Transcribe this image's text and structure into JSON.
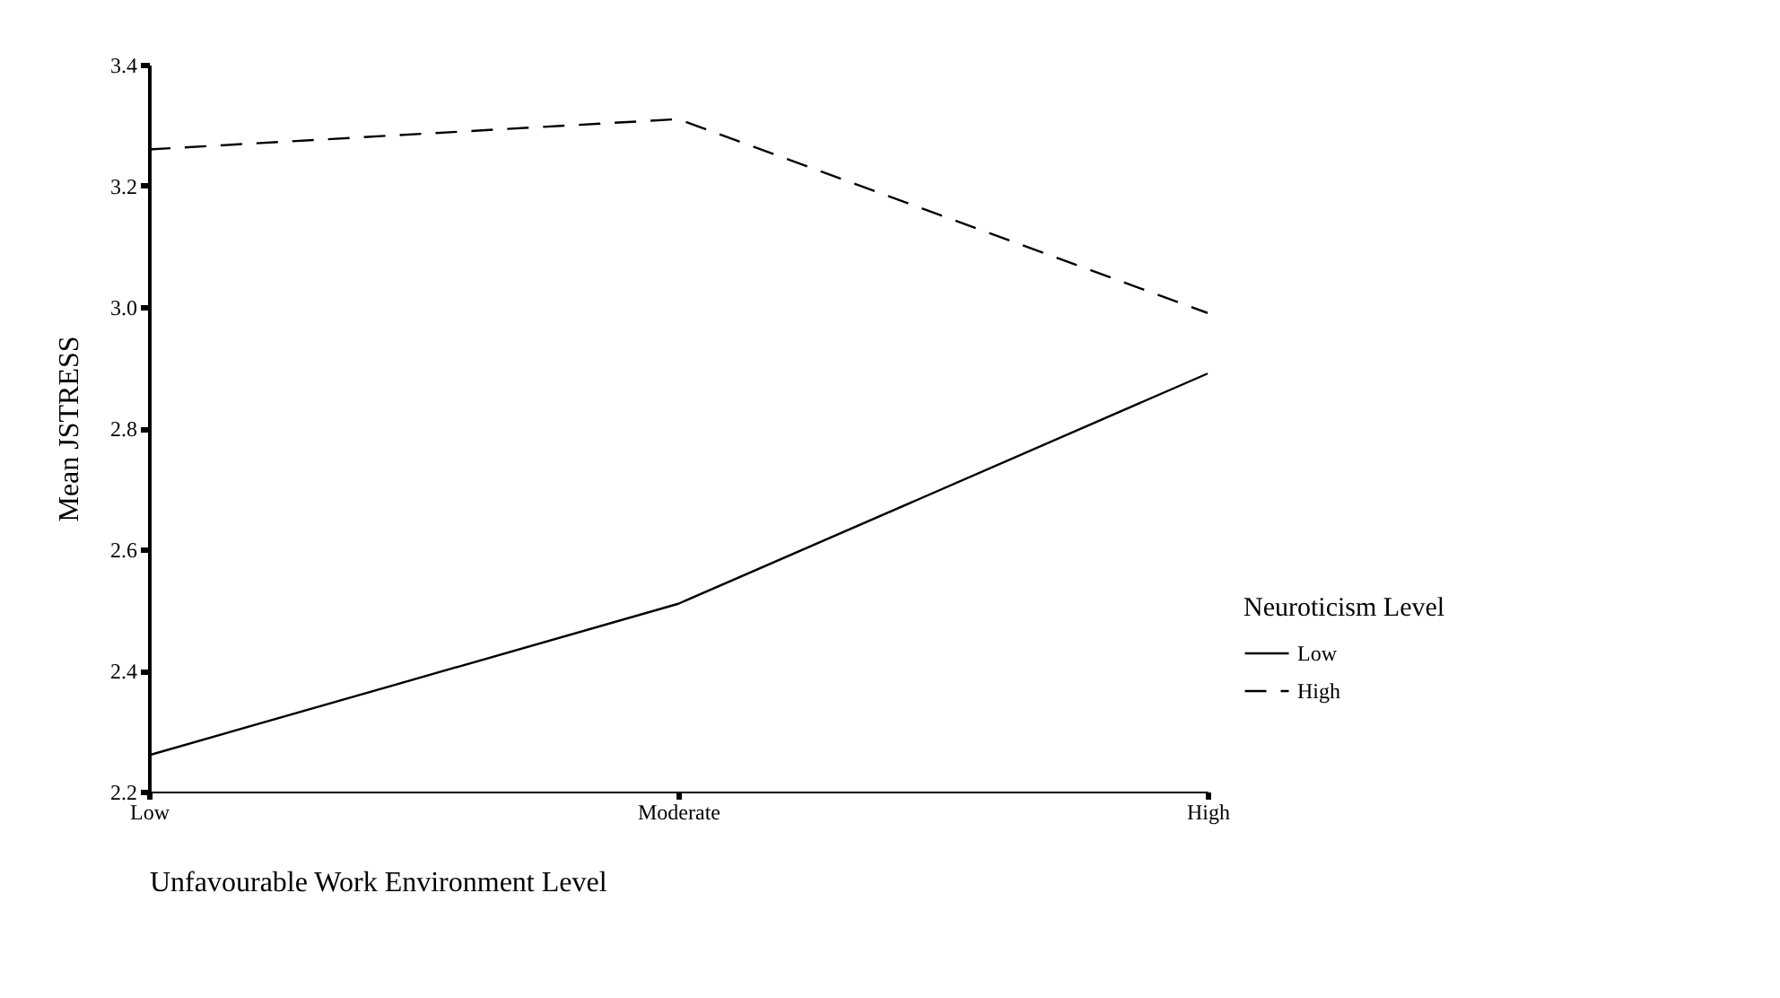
{
  "chart_data": {
    "type": "line",
    "xlabel": "Unfavourable Work Environment Level",
    "ylabel": "Mean JSTRESS",
    "legend_title": "Neuroticism Level",
    "categories": [
      "Low",
      "Moderate",
      "High"
    ],
    "series": [
      {
        "name": "Low",
        "color": "#000000",
        "line_style": "solid",
        "values": [
          2.26,
          2.51,
          2.89
        ]
      },
      {
        "name": "High",
        "color": "#000000",
        "line_style": "dashed",
        "values": [
          3.26,
          3.31,
          2.99
        ]
      }
    ],
    "ylim": [
      2.2,
      3.4
    ],
    "yticks": [
      2.2,
      2.4,
      2.6,
      2.8,
      {
        "value": 3,
        "label": "3.0"
      },
      3.2,
      3.4
    ],
    "grid": false,
    "legend": "bottom right"
  }
}
